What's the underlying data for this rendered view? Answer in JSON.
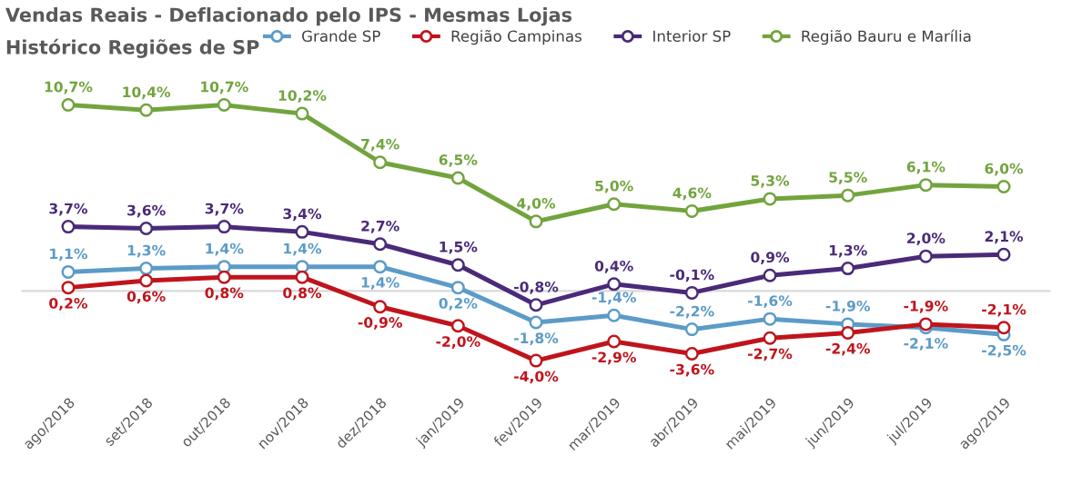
{
  "chart_data": {
    "type": "line",
    "title": "Vendas Reais - Deflacionado pelo IPS - Mesmas Lojas",
    "subtitle": "Histórico Regiões de SP",
    "categories": [
      "ago/2018",
      "set/2018",
      "out/2018",
      "nov/2018",
      "dez/2018",
      "jan/2019",
      "fev/2019",
      "mar/2019",
      "abr/2019",
      "mai/2019",
      "jun/2019",
      "jul/2019",
      "ago/2019"
    ],
    "marker": "circle",
    "line_style": "solid",
    "legend": "top",
    "grid": false,
    "ref_lines": [
      {
        "axis": "y",
        "value": 0,
        "color": "#d9d9d9"
      }
    ],
    "series": [
      {
        "name": "Grande SP",
        "color": "#5b9bc8",
        "values": [
          1.1,
          1.3,
          1.4,
          1.4,
          1.4,
          0.2,
          -1.8,
          -1.4,
          -2.2,
          -1.6,
          -1.9,
          -2.1,
          -2.5
        ],
        "value_labels": [
          "1,1%",
          "1,3%",
          "1,4%",
          "1,4%",
          "1,4%",
          "0,2%",
          "-1,8%",
          "-1,4%",
          "-2,2%",
          "-1,6%",
          "-1,9%",
          "-2,1%",
          "-2,5%"
        ]
      },
      {
        "name": "Região Campinas",
        "color": "#c0141c",
        "values": [
          0.2,
          0.6,
          0.8,
          0.8,
          -0.9,
          -2.0,
          -4.0,
          -2.9,
          -3.6,
          -2.7,
          -2.4,
          -1.9,
          -2.1
        ],
        "value_labels": [
          "0,2%",
          "0,6%",
          "0,8%",
          "0,8%",
          "-0,9%",
          "-2,0%",
          "-4,0%",
          "-2,9%",
          "-3,6%",
          "-2,7%",
          "-2,4%",
          "-1,9%",
          "-2,1%"
        ]
      },
      {
        "name": "Interior SP",
        "color": "#4a2a78",
        "values": [
          3.7,
          3.6,
          3.7,
          3.4,
          2.7,
          1.5,
          -0.8,
          0.4,
          -0.1,
          0.9,
          1.3,
          2.0,
          2.1
        ],
        "value_labels": [
          "3,7%",
          "3,6%",
          "3,7%",
          "3,4%",
          "2,7%",
          "1,5%",
          "-0,8%",
          "0,4%",
          "-0,1%",
          "0,9%",
          "1,3%",
          "2,0%",
          "2,1%"
        ]
      },
      {
        "name": "Região Bauru e Marília",
        "color": "#72a43e",
        "values": [
          10.7,
          10.4,
          10.7,
          10.2,
          7.4,
          6.5,
          4.0,
          5.0,
          4.6,
          5.3,
          5.5,
          6.1,
          6.0
        ],
        "value_labels": [
          "10,7%",
          "10,4%",
          "10,7%",
          "10,2%",
          "7,4%",
          "6,5%",
          "4,0%",
          "5,0%",
          "4,6%",
          "5,3%",
          "5,5%",
          "6,1%",
          "6,0%"
        ]
      }
    ]
  }
}
